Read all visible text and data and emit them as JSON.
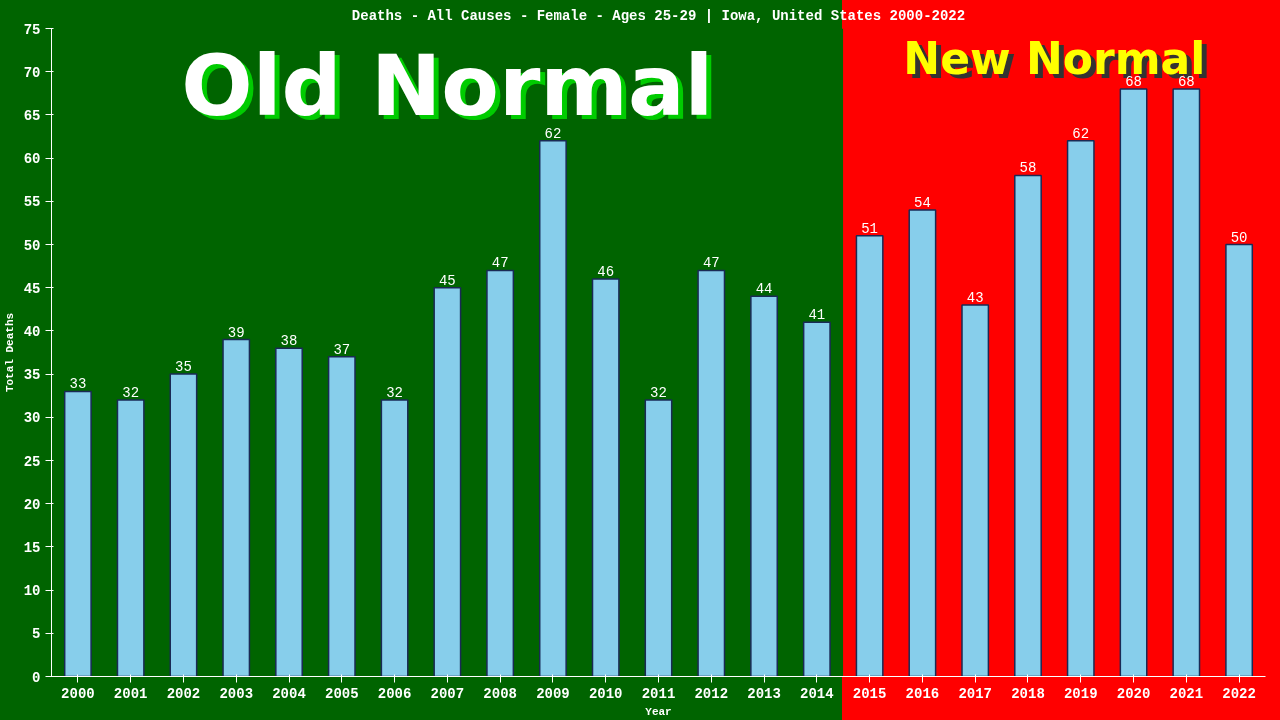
{
  "chart_data": {
    "type": "bar",
    "title": "Deaths - All Causes - Female - Ages 25-29 | Iowa, United States 2000-2022",
    "xlabel": "Year",
    "ylabel": "Total Deaths",
    "categories": [
      "2000",
      "2001",
      "2002",
      "2003",
      "2004",
      "2005",
      "2006",
      "2007",
      "2008",
      "2009",
      "2010",
      "2011",
      "2012",
      "2013",
      "2014",
      "2015",
      "2016",
      "2017",
      "2018",
      "2019",
      "2020",
      "2021",
      "2022"
    ],
    "values": [
      33,
      32,
      35,
      39,
      38,
      37,
      32,
      45,
      47,
      62,
      46,
      32,
      47,
      44,
      41,
      51,
      54,
      43,
      58,
      62,
      68,
      68,
      50
    ],
    "color": "#87ceeb",
    "data_labels": true,
    "grid": false,
    "ylim": [
      0,
      75
    ],
    "yticks": [
      0,
      5,
      10,
      15,
      20,
      25,
      30,
      35,
      40,
      45,
      50,
      55,
      60,
      65,
      70,
      75
    ],
    "bands": [
      {
        "axis": "x",
        "from": "2000",
        "to": "2014",
        "label": "Old Normal",
        "color": "#006400"
      },
      {
        "axis": "x",
        "from": "2015",
        "to": "2022",
        "label": "New Normal",
        "color": "#ff0000"
      }
    ]
  }
}
